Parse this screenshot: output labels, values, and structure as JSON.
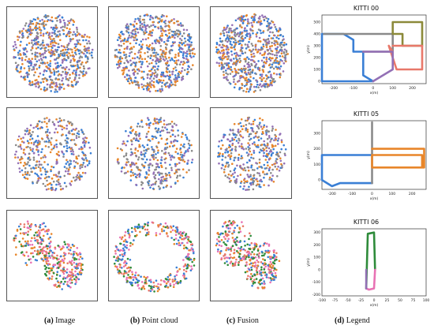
{
  "captions": [
    {
      "letter": "(a)",
      "text": "Image"
    },
    {
      "letter": "(b)",
      "text": "Point cloud"
    },
    {
      "letter": "(c)",
      "text": "Fusion"
    },
    {
      "letter": "(d)",
      "text": "Legend"
    }
  ],
  "colors": {
    "blue": "#3a7fd5",
    "orange": "#e8862a",
    "gray": "#8a8a8a",
    "purple": "#9370b5",
    "green": "#2e8b3a",
    "pink": "#e872b4",
    "salmon": "#e8786a",
    "olive": "#8c8a3a"
  },
  "chart_data": [
    {
      "type": "line",
      "title": "KITTI 00",
      "xlabel": "x(m)",
      "ylabel": "y(m)",
      "xlim": [
        -260,
        270
      ],
      "ylim": [
        -20,
        560
      ],
      "xticks": [
        -200,
        -100,
        0,
        100,
        200
      ],
      "yticks": [
        0,
        100,
        200,
        300,
        400,
        500
      ],
      "series": [
        {
          "color": "#3a7fd5",
          "x": [
            0,
            -260,
            -260,
            -150,
            -100,
            -100,
            -50,
            -50,
            0
          ],
          "y": [
            0,
            0,
            400,
            400,
            350,
            250,
            250,
            50,
            0
          ]
        },
        {
          "color": "#8a8a8a",
          "x": [
            -50,
            100,
            100,
            -250
          ],
          "y": [
            250,
            250,
            400,
            400
          ]
        },
        {
          "color": "#8c8a3a",
          "x": [
            100,
            100,
            200,
            250,
            250,
            150,
            150,
            100
          ],
          "y": [
            400,
            500,
            500,
            500,
            300,
            300,
            400,
            400
          ]
        },
        {
          "color": "#e8786a",
          "x": [
            100,
            250,
            250,
            120,
            80,
            100
          ],
          "y": [
            300,
            300,
            100,
            100,
            300,
            250
          ]
        },
        {
          "color": "#9370b5",
          "x": [
            -50,
            100,
            100,
            0
          ],
          "y": [
            250,
            250,
            100,
            0
          ]
        }
      ]
    },
    {
      "type": "line",
      "title": "KITTI 05",
      "xlabel": "x(m)",
      "ylabel": "y(m)",
      "xlim": [
        -250,
        270
      ],
      "ylim": [
        -60,
        380
      ],
      "xticks": [
        -200,
        -100,
        0,
        100,
        200
      ],
      "yticks": [
        0,
        100,
        200,
        300
      ],
      "series": [
        {
          "color": "#3a7fd5",
          "x": [
            0,
            -250,
            -250,
            -200,
            -160,
            0
          ],
          "y": [
            160,
            160,
            0,
            -40,
            -20,
            -20
          ]
        },
        {
          "color": "#8a8a8a",
          "x": [
            0,
            0,
            0
          ],
          "y": [
            -20,
            160,
            370
          ]
        },
        {
          "color": "#e8862a",
          "x": [
            0,
            260,
            260,
            0,
            0,
            250,
            250,
            0
          ],
          "y": [
            200,
            200,
            80,
            80,
            160,
            160,
            80,
            80
          ]
        }
      ]
    },
    {
      "type": "line",
      "title": "KITTI 06",
      "xlabel": "x(m)",
      "ylabel": "y(m)",
      "xlim": [
        -100,
        100
      ],
      "ylim": [
        -210,
        330
      ],
      "xticks": [
        -100,
        -75,
        -50,
        -25,
        0,
        25,
        50,
        75,
        100
      ],
      "yticks": [
        -200,
        -100,
        0,
        100,
        200,
        300
      ],
      "series": [
        {
          "color": "#2e8b3a",
          "x": [
            -15,
            -12,
            0,
            2
          ],
          "y": [
            -150,
            290,
            300,
            0
          ]
        },
        {
          "color": "#e872b4",
          "x": [
            2,
            0,
            -10,
            -15
          ],
          "y": [
            0,
            -150,
            -160,
            -150
          ]
        },
        {
          "color": "#9370b5",
          "x": [
            -15,
            -15
          ],
          "y": [
            -150,
            0
          ]
        }
      ]
    }
  ]
}
